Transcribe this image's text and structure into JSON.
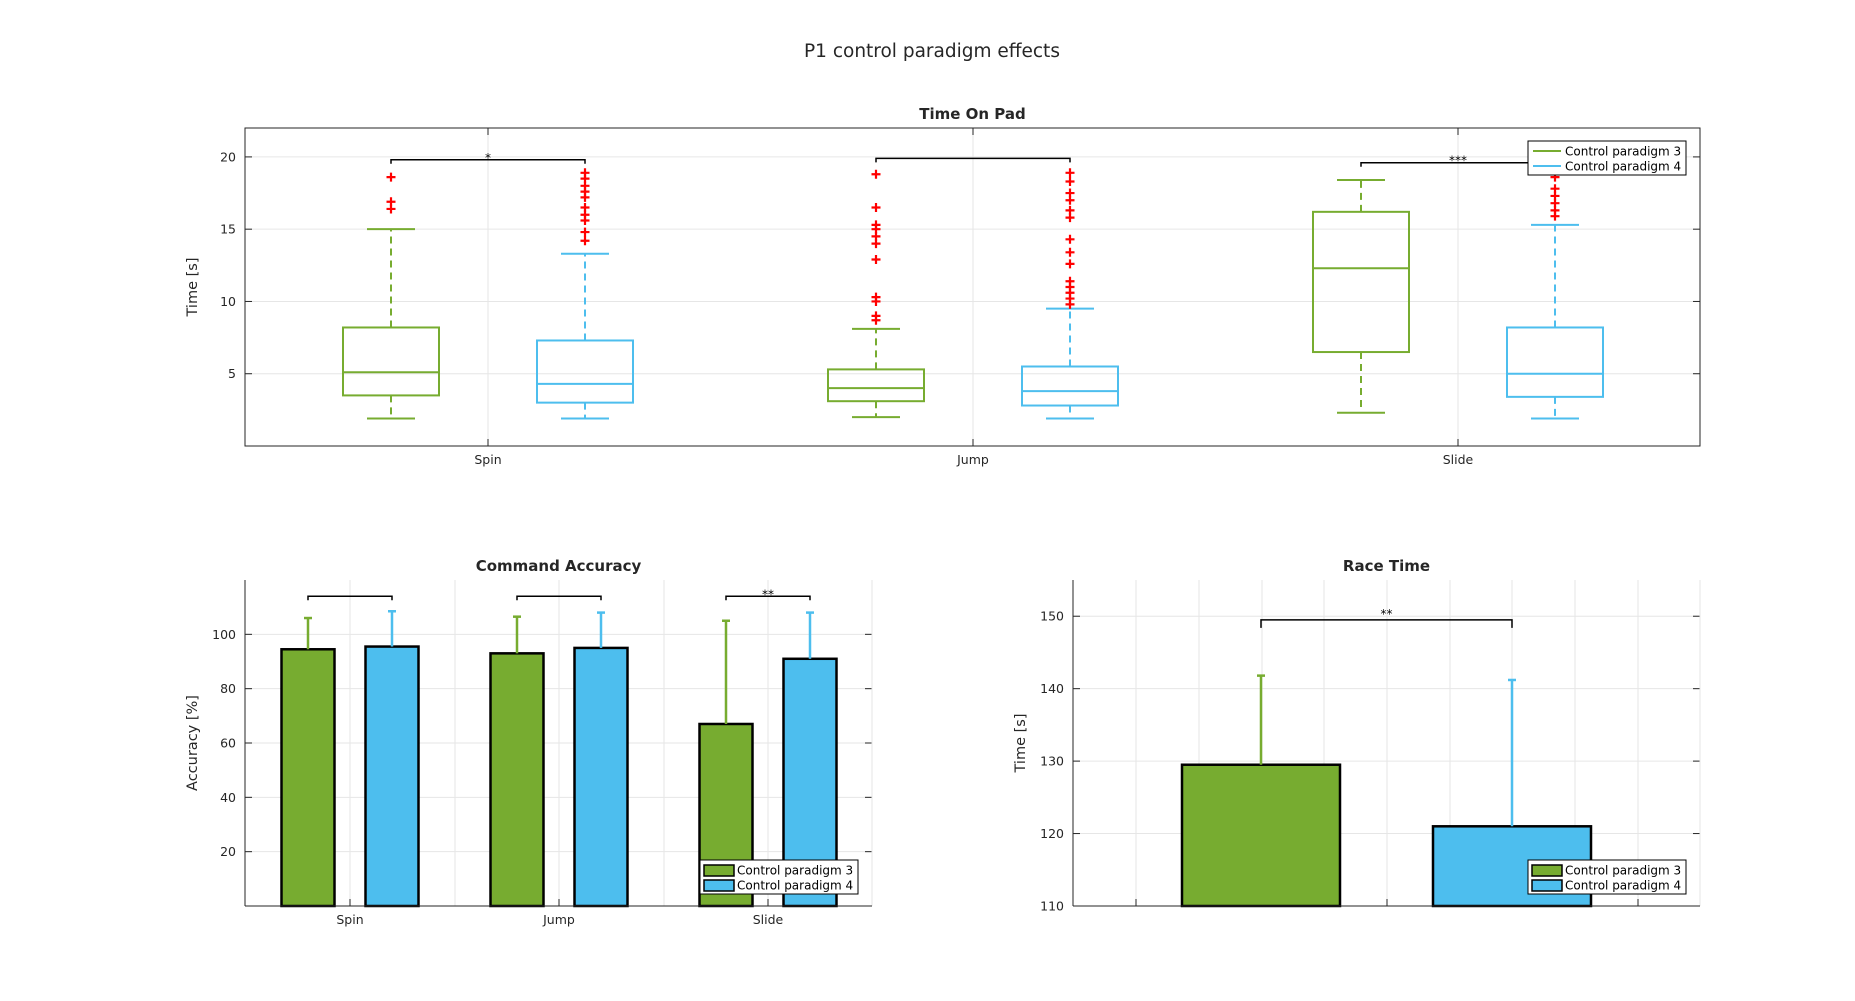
{
  "figure": {
    "title": "P1 control paradigm effects",
    "colors": {
      "cp3": "#77AC30",
      "cp4": "#4DBEEE",
      "outlier": "#FF0000",
      "grid": "#e6e6e6",
      "axis": "#262626"
    }
  },
  "chart_data": [
    {
      "type": "box",
      "title": "Time On Pad",
      "ylabel": "Time [s]",
      "xlabel": "",
      "ylim": [
        0,
        22
      ],
      "yticks": [
        5,
        10,
        15,
        20
      ],
      "categories": [
        "Spin",
        "Jump",
        "Slide"
      ],
      "grid": true,
      "legend": {
        "position": "top-right",
        "style": "line"
      },
      "series": [
        {
          "name": "Control paradigm 3",
          "boxes": [
            {
              "min": 1.9,
              "q1": 3.5,
              "median": 5.1,
              "q3": 8.2,
              "max": 15.0,
              "outliers": [
                16.4,
                16.9,
                18.6
              ]
            },
            {
              "min": 2.0,
              "q1": 3.1,
              "median": 4.0,
              "q3": 5.3,
              "max": 8.1,
              "outliers": [
                8.7,
                9.0,
                10.0,
                10.3,
                12.9,
                14.0,
                14.5,
                15.0,
                15.3,
                16.5,
                18.8
              ]
            },
            {
              "min": 2.3,
              "q1": 6.5,
              "median": 12.3,
              "q3": 16.2,
              "max": 18.4,
              "outliers": []
            }
          ]
        },
        {
          "name": "Control paradigm 4",
          "boxes": [
            {
              "min": 1.9,
              "q1": 3.0,
              "median": 4.3,
              "q3": 7.3,
              "max": 13.3,
              "outliers": [
                14.2,
                14.8,
                15.6,
                16.0,
                16.5,
                17.2,
                17.6,
                18.0,
                18.5,
                18.9
              ]
            },
            {
              "min": 1.9,
              "q1": 2.8,
              "median": 3.8,
              "q3": 5.5,
              "max": 9.5,
              "outliers": [
                9.8,
                10.2,
                10.6,
                11.0,
                11.4,
                12.6,
                13.4,
                14.3,
                15.8,
                16.3,
                17.0,
                17.5,
                18.3,
                18.9
              ]
            },
            {
              "min": 1.9,
              "q1": 3.4,
              "median": 5.0,
              "q3": 8.2,
              "max": 15.3,
              "outliers": [
                15.9,
                16.3,
                16.8,
                17.3,
                17.8,
                18.6
              ]
            }
          ]
        }
      ],
      "significance": [
        {
          "category": "Spin",
          "y": 19.8,
          "label": "*"
        },
        {
          "category": "Jump",
          "y": 19.9,
          "label": ""
        },
        {
          "category": "Slide",
          "y": 19.6,
          "label": "***"
        }
      ]
    },
    {
      "type": "bar",
      "title": "Command Accuracy",
      "ylabel": "Accuracy [%]",
      "xlabel": "",
      "ylim": [
        0,
        120
      ],
      "yticks": [
        20,
        40,
        60,
        80,
        100
      ],
      "categories": [
        "Spin",
        "Jump",
        "Slide"
      ],
      "grid": true,
      "legend": {
        "position": "bottom-right",
        "style": "patch"
      },
      "series": [
        {
          "name": "Control paradigm 3",
          "values": [
            94.5,
            93.0,
            67.0
          ],
          "errors": [
            11.5,
            13.5,
            38.0
          ]
        },
        {
          "name": "Control paradigm 4",
          "values": [
            95.5,
            95.0,
            91.0
          ],
          "errors": [
            13.0,
            13.0,
            17.0
          ]
        }
      ],
      "significance": [
        {
          "category": "Spin",
          "y": 114,
          "label": ""
        },
        {
          "category": "Jump",
          "y": 114,
          "label": ""
        },
        {
          "category": "Slide",
          "y": 114,
          "label": "**"
        }
      ]
    },
    {
      "type": "bar",
      "title": "Race Time",
      "ylabel": "Time [s]",
      "xlabel": "",
      "ylim": [
        110,
        155
      ],
      "yticks": [
        110,
        120,
        130,
        140,
        150
      ],
      "categories": [
        ""
      ],
      "grid": true,
      "legend": {
        "position": "bottom-right",
        "style": "patch"
      },
      "series": [
        {
          "name": "Control paradigm 3",
          "values": [
            129.5
          ],
          "errors": [
            12.3
          ]
        },
        {
          "name": "Control paradigm 4",
          "values": [
            121.0
          ],
          "errors": [
            20.2
          ]
        }
      ],
      "significance": [
        {
          "category": "",
          "y": 149.5,
          "label": "**"
        }
      ]
    }
  ]
}
